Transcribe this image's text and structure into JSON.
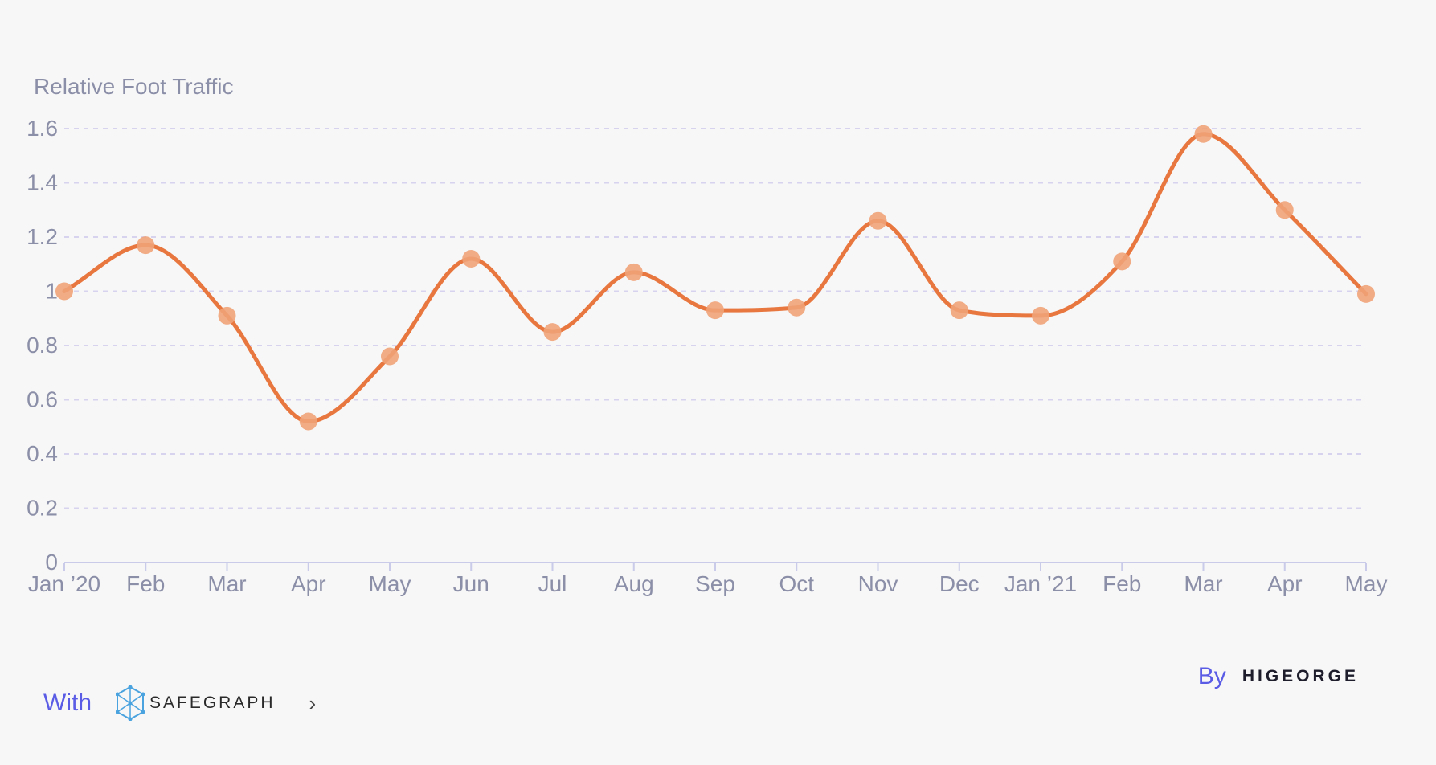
{
  "chart_data": {
    "type": "line",
    "ylabel": "Relative Foot Traffic",
    "ylim": [
      0,
      1.6
    ],
    "yticks": [
      "0",
      "0.2",
      "0.4",
      "0.6",
      "0.8",
      "1",
      "1.2",
      "1.4",
      "1.6"
    ],
    "categories": [
      "Jan '20",
      "Feb",
      "Mar",
      "Apr",
      "May",
      "Jun",
      "Jul",
      "Aug",
      "Sep",
      "Oct",
      "Nov",
      "Dec",
      "Jan '21",
      "Feb",
      "Mar",
      "Apr",
      "May"
    ],
    "series": [
      {
        "values": [
          1.0,
          1.17,
          0.91,
          0.52,
          0.76,
          1.12,
          0.85,
          1.07,
          0.93,
          0.94,
          1.26,
          0.93,
          0.91,
          1.11,
          1.58,
          1.3,
          0.99
        ]
      }
    ],
    "grid": true,
    "colors": {
      "line": "#e8773f",
      "marker": "#f0a278",
      "grid": "#d7d3ef",
      "axis": "#c9cbe8",
      "text": "#8c8fa8"
    }
  },
  "footer": {
    "with_label": "With",
    "safegraph_logo": "SAFEGRAPH",
    "chevron_icon": "chevron-right-icon",
    "by_label": "By",
    "higeorge_logo": "HIGEORGE"
  }
}
